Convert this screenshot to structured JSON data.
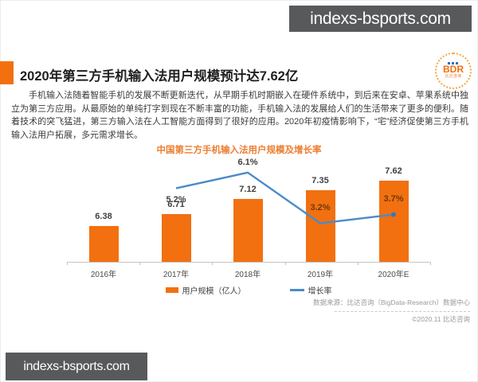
{
  "watermarks": {
    "top": "indexs-bsports.com",
    "bottom": "indexs-bsports.com"
  },
  "header": {
    "title": "2020年第三方手机输入法用户规模预计达7.62亿",
    "logo_text": "BDR",
    "logo_subtext": "比达咨询"
  },
  "paragraph": "手机输入法随着智能手机的发展不断更新迭代，从早期手机时期嵌入在硬件系统中，到后来在安卓、苹果系统中独立为第三方应用。从最原始的单纯打字到现在不断丰富的功能，手机输入法的发展给人们的生活带来了更多的便利。随着技术的突飞猛进，第三方输入法在人工智能方面得到了很好的应用。2020年初疫情影响下，“宅”经济促使第三方手机输入法用户拓展，多元需求增长。",
  "chart_data": {
    "type": "bar",
    "title": "中国第三方手机输入法用户规模及增长率",
    "categories": [
      "2016年",
      "2017年",
      "2018年",
      "2019年",
      "2020年E"
    ],
    "series": [
      {
        "name": "用户规模（亿人）",
        "type": "bar",
        "values": [
          6.38,
          6.71,
          7.12,
          7.35,
          7.62
        ],
        "color": "#F2700F"
      },
      {
        "name": "增长率",
        "type": "line",
        "values": [
          null,
          5.2,
          6.1,
          3.2,
          3.7
        ],
        "unit": "%",
        "color": "#4A8BC9"
      }
    ],
    "legend": [
      "用户规模（亿人）",
      "增长率"
    ],
    "legend_position": "bottom",
    "grid": false,
    "value_labels": true
  },
  "footer": {
    "source": "数据来源：比达咨询（BigData-Research）数据中心",
    "copyright": "©2020.11 比达咨询"
  },
  "colors": {
    "bar_orange": "#F2700F",
    "line_blue": "#4A8BC9",
    "title_orange": "#ED7D31",
    "banner_gray": "#58595B",
    "on_bar_label": "#6E3A10"
  }
}
